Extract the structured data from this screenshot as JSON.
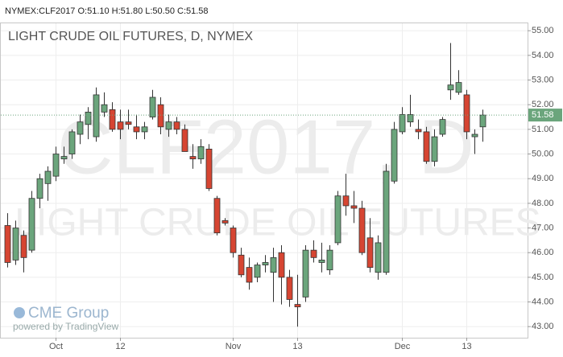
{
  "chart_data": {
    "type": "candlestick",
    "header": "NYMEX:CLF2017 O:51.10 H:51.80 L:50.50 C:51.58",
    "title": "LIGHT CRUDE OIL FUTURES, D, NYMEX",
    "watermark": [
      "CLF2017, D",
      "LIGHT CRUDE OIL FUTURES"
    ],
    "logo": "CME Group",
    "credit": "powered by TradingView",
    "up_color": "#6ba57c",
    "down_color": "#d64532",
    "categories": [
      null,
      null,
      null,
      null,
      null,
      null,
      "Oct",
      null,
      null,
      null,
      null,
      null,
      null,
      null,
      "12",
      null,
      null,
      null,
      null,
      null,
      null,
      null,
      null,
      null,
      null,
      null,
      null,
      null,
      "Nov",
      null,
      null,
      null,
      null,
      null,
      null,
      null,
      "13",
      null,
      null,
      null,
      null,
      null,
      null,
      null,
      null,
      null,
      null,
      null,
      null,
      "Dec",
      null,
      null,
      null,
      null,
      null,
      null,
      null,
      "13",
      null,
      null
    ],
    "open": [
      47.1,
      45.7,
      46.7,
      46.1,
      48.2,
      48.8,
      49.1,
      49.8,
      50.0,
      50.8,
      51.2,
      50.7,
      51.7,
      51.8,
      51.3,
      51.3,
      51.1,
      50.9,
      51.5,
      52.0,
      51.0,
      51.3,
      51.0,
      49.9,
      49.8,
      50.2,
      48.2,
      47.3,
      47.0,
      45.9,
      45.4,
      45.0,
      45.5,
      45.2,
      46.0,
      45.0,
      43.9,
      44.2,
      46.1,
      45.6,
      45.3,
      46.4,
      48.3,
      47.9,
      47.8,
      46.6,
      45.2,
      45.2,
      48.9,
      50.9,
      51.3,
      51.0,
      50.9,
      49.7,
      50.8,
      52.6,
      52.5,
      52.4,
      50.7,
      51.1
    ],
    "high": [
      47.6,
      47.3,
      46.9,
      48.5,
      49.2,
      49.5,
      50.3,
      50.3,
      51.0,
      51.6,
      51.9,
      52.7,
      52.5,
      52.1,
      51.8,
      51.8,
      51.6,
      51.3,
      52.6,
      52.3,
      51.6,
      51.5,
      51.2,
      50.4,
      50.6,
      50.4,
      48.3,
      47.4,
      47.1,
      46.2,
      45.8,
      45.6,
      45.9,
      46.2,
      46.3,
      45.3,
      45.1,
      46.3,
      46.5,
      46.4,
      46.3,
      48.5,
      49.2,
      48.5,
      48.1,
      47.4,
      46.7,
      49.6,
      51.3,
      51.9,
      52.4,
      51.4,
      51.1,
      51.0,
      51.5,
      54.5,
      53.4,
      52.6,
      51.0,
      51.8
    ],
    "low": [
      45.4,
      45.5,
      45.2,
      46.0,
      47.8,
      48.1,
      48.9,
      49.6,
      49.8,
      50.4,
      50.6,
      50.5,
      51.5,
      50.9,
      50.6,
      51.0,
      50.6,
      50.6,
      51.4,
      50.8,
      50.7,
      50.8,
      50.1,
      49.4,
      49.6,
      48.5,
      46.7,
      47.1,
      45.8,
      45.0,
      44.5,
      44.8,
      45.2,
      44.0,
      43.9,
      43.8,
      43.0,
      44.0,
      45.6,
      45.2,
      45.1,
      46.3,
      47.5,
      47.2,
      45.9,
      45.2,
      44.9,
      45.1,
      48.8,
      50.8,
      51.1,
      50.6,
      49.6,
      49.5,
      50.7,
      52.2,
      52.4,
      50.6,
      50.0,
      50.5
    ],
    "close": [
      45.6,
      47.0,
      45.8,
      48.2,
      49.0,
      49.3,
      50.0,
      49.9,
      50.9,
      51.3,
      51.7,
      52.4,
      52.0,
      51.0,
      51.0,
      51.2,
      50.9,
      51.1,
      52.3,
      51.1,
      51.3,
      51.0,
      50.1,
      49.8,
      50.3,
      48.6,
      46.8,
      47.2,
      46.0,
      45.1,
      44.8,
      45.5,
      45.6,
      45.8,
      45.0,
      44.1,
      43.8,
      46.1,
      45.8,
      45.7,
      46.1,
      48.3,
      47.9,
      47.8,
      46.0,
      45.4,
      46.4,
      49.3,
      51.0,
      51.6,
      51.6,
      50.9,
      49.7,
      50.7,
      51.4,
      52.8,
      52.9,
      50.9,
      50.8,
      51.58
    ],
    "last_price": {
      "value": 51.58,
      "label": "51.58"
    },
    "ylim": [
      42.55,
      55.3
    ],
    "yticks": [
      {
        "value": 43,
        "label": "43.00"
      },
      {
        "value": 44,
        "label": "44.00"
      },
      {
        "value": 45,
        "label": "45.00"
      },
      {
        "value": 46,
        "label": "46.00"
      },
      {
        "value": 47,
        "label": "47.00"
      },
      {
        "value": 48,
        "label": "48.00"
      },
      {
        "value": 49,
        "label": "49.00"
      },
      {
        "value": 50,
        "label": "50.00"
      },
      {
        "value": 51,
        "label": "51.00"
      },
      {
        "value": 52,
        "label": "52.00"
      },
      {
        "value": 53,
        "label": "53.00"
      },
      {
        "value": 54,
        "label": "54.00"
      },
      {
        "value": 55,
        "label": "55.00"
      }
    ],
    "grid": true
  }
}
